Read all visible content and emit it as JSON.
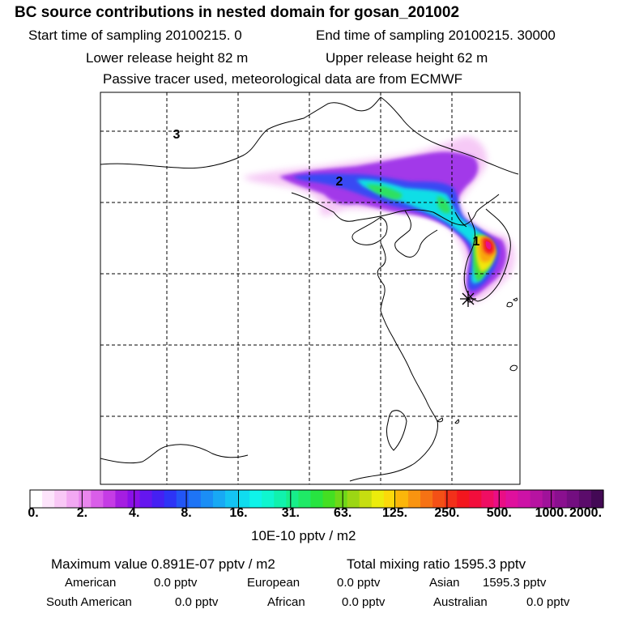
{
  "header": {
    "title": "BC  source contributions in nested domain for gosan_201002",
    "start_label": "Start time of sampling 20100215.     0",
    "end_label": "End time of sampling 20100215. 30000",
    "lower_label": "Lower release height   82 m",
    "upper_label": "Upper release height   62 m",
    "tracer_note": "Passive tracer used, meteorological data are from ECMWF"
  },
  "map": {
    "markers": [
      {
        "label": "3"
      },
      {
        "label": "2"
      },
      {
        "label": "1"
      }
    ],
    "receptor_symbol": "asterisk-icon"
  },
  "colorbar": {
    "labels": [
      "0.",
      "2.",
      "4.",
      "8.",
      "16.",
      "31.",
      "63.",
      "125.",
      "250.",
      "500.",
      "1000.",
      "2000."
    ],
    "unit": "10E-10 pptv / m2",
    "colors": [
      "#ffffff",
      "#fde4fb",
      "#f9c8f6",
      "#f2a8f2",
      "#e986ee",
      "#d95ee9",
      "#c53ce5",
      "#a51ee1",
      "#8a10e8",
      "#6516ef",
      "#4520f3",
      "#2d34f6",
      "#2256f6",
      "#1e74f6",
      "#1b8ef5",
      "#18a9f4",
      "#14c4f3",
      "#10dcef",
      "#0ff3e9",
      "#0ff6cf",
      "#11f2ad",
      "#17ee8a",
      "#1fea66",
      "#27e440",
      "#44df22",
      "#6fd818",
      "#9cd614",
      "#c6de10",
      "#ecec0c",
      "#fbd90a",
      "#fbb60a",
      "#f99410",
      "#f67214",
      "#f45016",
      "#f2301a",
      "#f3161e",
      "#f20e3c",
      "#ef0e63",
      "#ea0e85",
      "#df109d",
      "#cd12a6",
      "#b713a1",
      "#a0129a",
      "#8a108f",
      "#730e80",
      "#5b0c6b",
      "#430955"
    ]
  },
  "summary": {
    "max_label": "Maximum value  0.891E-07 pptv / m2",
    "total_label": "Total mixing ratio     1595.3 pptv",
    "american_label": "American",
    "american_value": "0.0 pptv",
    "european_label": "European",
    "european_value": "0.0 pptv",
    "asian_label": "Asian",
    "asian_value": "1595.3 pptv",
    "south_american_label": "South American",
    "south_american_value": "0.0 pptv",
    "african_label": "African",
    "african_value": "0.0 pptv",
    "australian_label": "Australian",
    "australian_value": "0.0 pptv"
  }
}
